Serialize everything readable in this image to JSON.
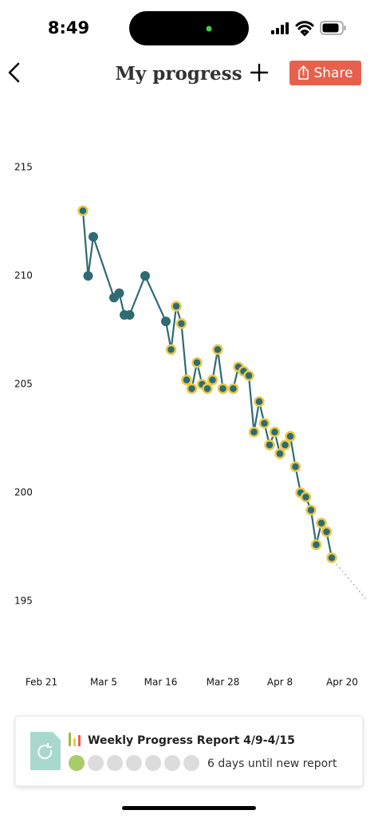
{
  "status_bar": {
    "time": "8:49"
  },
  "header": {
    "title": "My progress",
    "share": "Share"
  },
  "chart_data": {
    "type": "line",
    "x": [
      8,
      9,
      10,
      14,
      15,
      16,
      17,
      20,
      24,
      25,
      26,
      27,
      28,
      29,
      30,
      31,
      32,
      33,
      34,
      35,
      37,
      38,
      39,
      40,
      41,
      42,
      43,
      44,
      45,
      46,
      47,
      48,
      49,
      50,
      51,
      52,
      53,
      54,
      55,
      56
    ],
    "series": [
      {
        "color": "#2f6b73",
        "values": [
          213.0,
          210.0,
          211.8,
          209.0,
          209.2,
          208.2,
          208.2,
          210.0,
          207.9,
          206.6,
          208.6,
          207.8,
          205.2,
          204.8,
          206.0,
          205.0,
          204.8,
          205.2,
          206.6,
          204.8,
          204.8,
          205.8,
          205.6,
          205.4,
          202.8,
          204.2,
          203.2,
          202.2,
          202.8,
          201.8,
          202.2,
          202.6,
          201.2,
          200.0,
          199.8,
          199.2,
          197.6,
          198.6,
          198.2,
          197.0
        ],
        "ring": [
          true,
          false,
          false,
          false,
          false,
          false,
          false,
          false,
          false,
          true,
          true,
          true,
          true,
          true,
          true,
          true,
          true,
          true,
          true,
          true,
          true,
          true,
          true,
          true,
          true,
          true,
          true,
          true,
          true,
          true,
          true,
          true,
          true,
          true,
          true,
          true,
          true,
          true,
          true,
          true
        ],
        "ring_color": "#e8c94a"
      }
    ],
    "xlim": [
      -3,
      62
    ],
    "xticks": [
      {
        "value": 0,
        "label": "Feb 21"
      },
      {
        "value": 12,
        "label": "Mar 5"
      },
      {
        "value": 23,
        "label": "Mar 16"
      },
      {
        "value": 35,
        "label": "Mar 28"
      },
      {
        "value": 46,
        "label": "Apr 8"
      },
      {
        "value": 58,
        "label": "Apr 20"
      }
    ],
    "ylim": [
      193,
      218
    ],
    "yticks": [
      195,
      200,
      205,
      210,
      215
    ],
    "grid": false
  },
  "report": {
    "title": "Weekly Progress Report 4/9-4/15",
    "status": "6 days until new report",
    "days": [
      true,
      false,
      false,
      false,
      false,
      false,
      false
    ]
  }
}
